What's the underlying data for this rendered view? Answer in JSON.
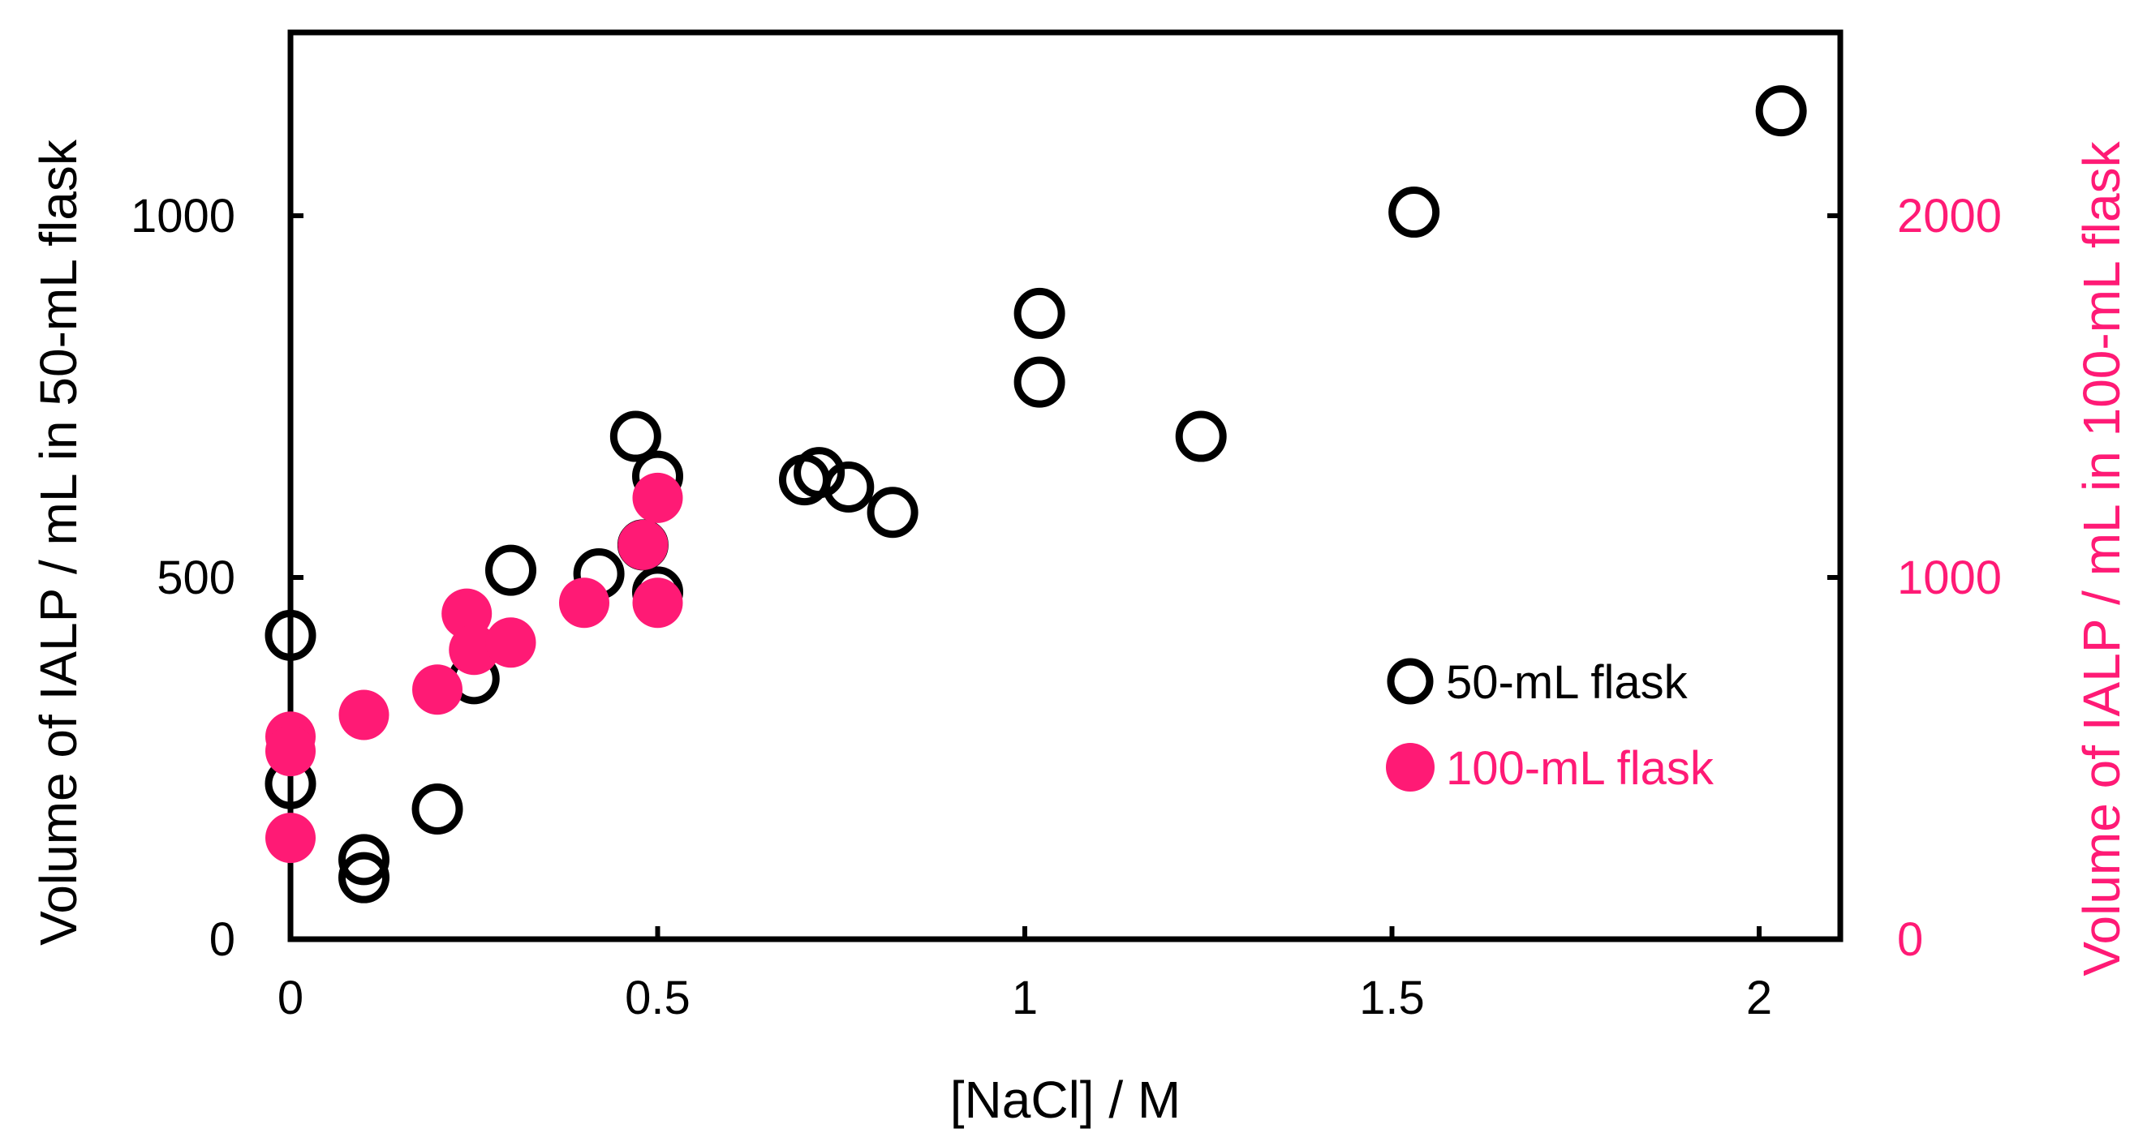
{
  "chart_data": {
    "type": "scatter",
    "title": "",
    "xlabel": "[NaCl] / M",
    "ylabel": "Volume of IALP / mL in 50-mL flask",
    "y2label": "Volume of IALP / mL in 100-mL flask",
    "xlim": [
      0,
      2.1
    ],
    "ylim": [
      0,
      1250
    ],
    "y2lim": [
      0,
      2500
    ],
    "xticks": [
      "0",
      "0.5",
      "1",
      "1.5",
      "2"
    ],
    "yticks": [
      "0",
      "500",
      "1000"
    ],
    "y2ticks": [
      "0",
      "1000",
      "2000"
    ],
    "legend_position": "right",
    "colors": {
      "series1": "#000000",
      "series2": "#ff1a75",
      "axis": "#000000"
    },
    "series": [
      {
        "name": "50-mL flask",
        "axis": "left",
        "marker": "open-circle",
        "x": [
          0,
          0,
          0.1,
          0.1,
          0.2,
          0.25,
          0.3,
          0.42,
          0.47,
          0.48,
          0.5,
          0.5,
          0.7,
          0.72,
          0.76,
          0.82,
          1.02,
          1.02,
          1.24,
          1.53,
          2.03
        ],
        "y": [
          420,
          215,
          110,
          85,
          180,
          360,
          510,
          505,
          695,
          545,
          640,
          480,
          635,
          645,
          625,
          590,
          865,
          770,
          695,
          1005,
          1145
        ]
      },
      {
        "name": "100-mL flask",
        "axis": "right",
        "marker": "filled-circle",
        "x": [
          0,
          0,
          0,
          0.1,
          0.2,
          0.24,
          0.25,
          0.3,
          0.4,
          0.48,
          0.5,
          0.5
        ],
        "y": [
          560,
          520,
          280,
          620,
          690,
          900,
          800,
          820,
          930,
          1090,
          1220,
          930
        ]
      }
    ]
  }
}
